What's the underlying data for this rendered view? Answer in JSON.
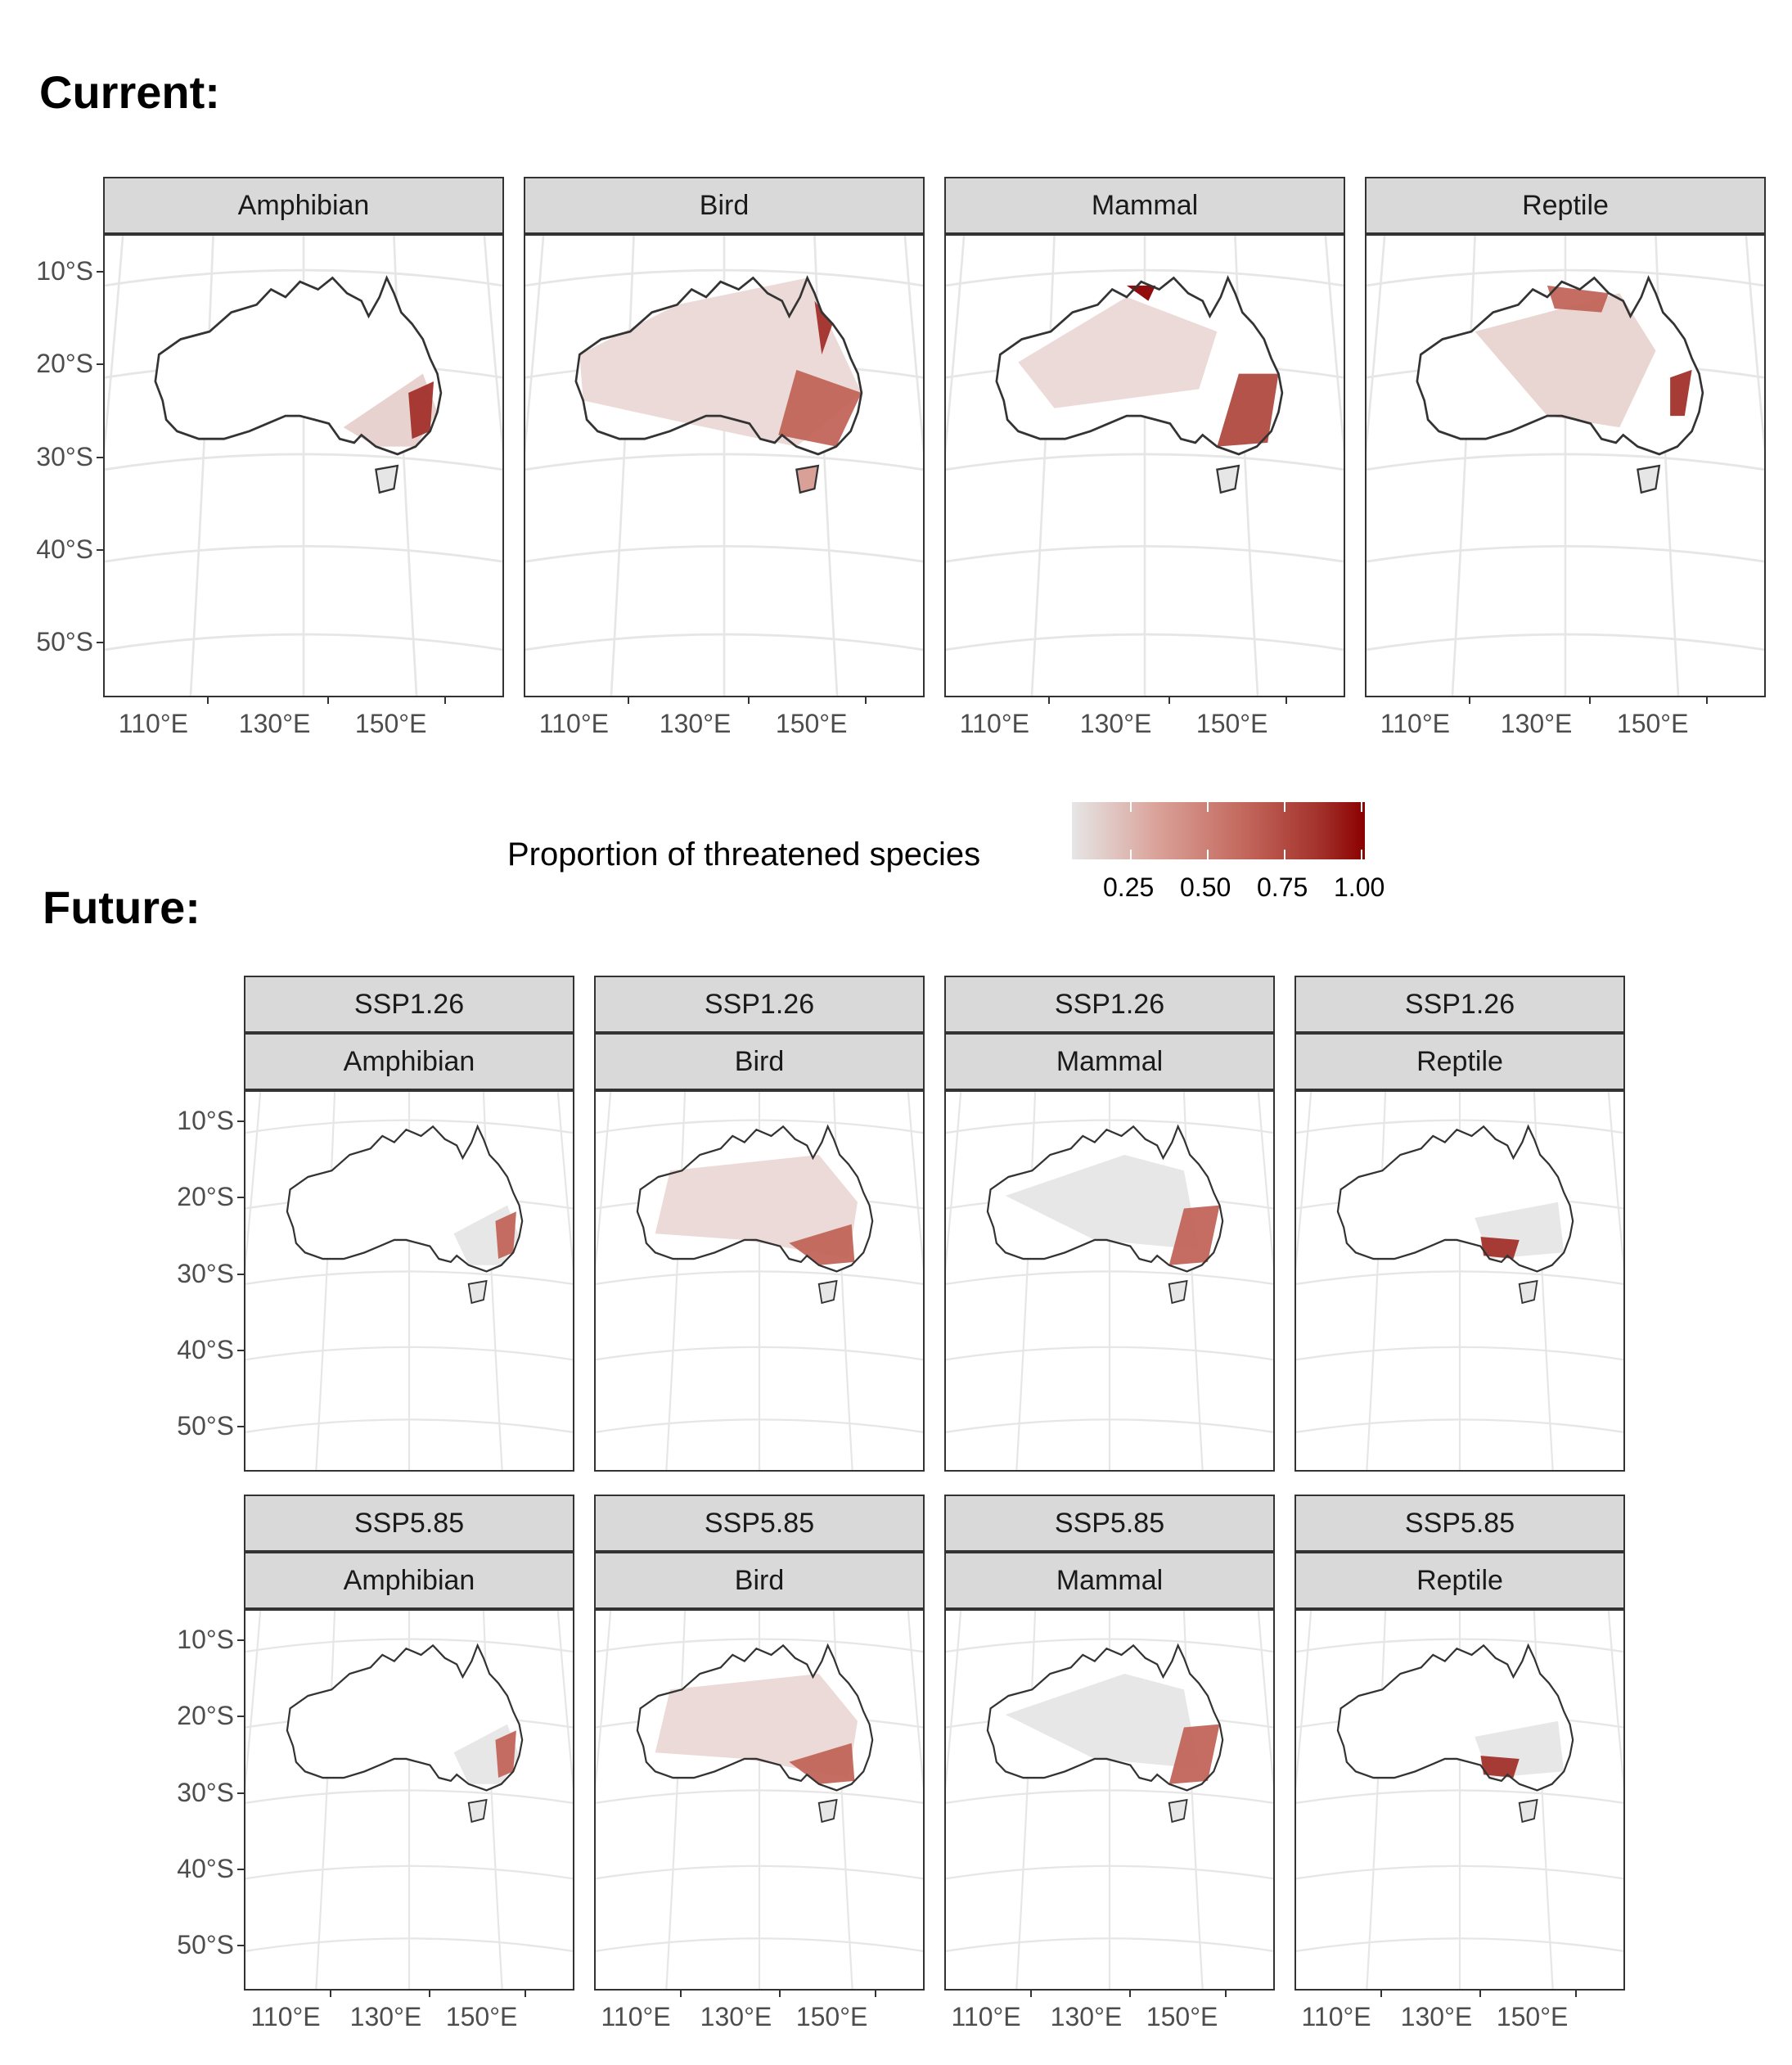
{
  "sections": {
    "current": "Current:",
    "future": "Future:"
  },
  "taxa": [
    "Amphibian",
    "Bird",
    "Mammal",
    "Reptile"
  ],
  "scenarios": [
    "SSP1.26",
    "SSP5.85"
  ],
  "axes": {
    "y_ticks": [
      "10°S",
      "20°S",
      "30°S",
      "40°S",
      "50°S"
    ],
    "x_ticks": [
      "110°E",
      "130°E",
      "150°E"
    ]
  },
  "legend": {
    "title": "Proportion of threatened species",
    "ticks": [
      "0.25",
      "0.50",
      "0.75",
      "1.00"
    ],
    "colors": [
      "#e6e6e6",
      "#d9a097",
      "#c2655a",
      "#a2302a",
      "#8b0000"
    ]
  },
  "chart_data": {
    "type": "heatmap",
    "description_units": "proportion of threatened species (0-1)",
    "color_scale": {
      "low": "#e6e6e6",
      "high": "#8b0000",
      "range": [
        0,
        1
      ]
    },
    "xlim": [
      105,
      175
    ],
    "ylim": [
      -55,
      -5
    ]
  },
  "map_colors": {
    "grid": "#e6e6e6",
    "outline": "#333333",
    "frame": "#333333",
    "strip_bg": "#d9d9d9"
  }
}
